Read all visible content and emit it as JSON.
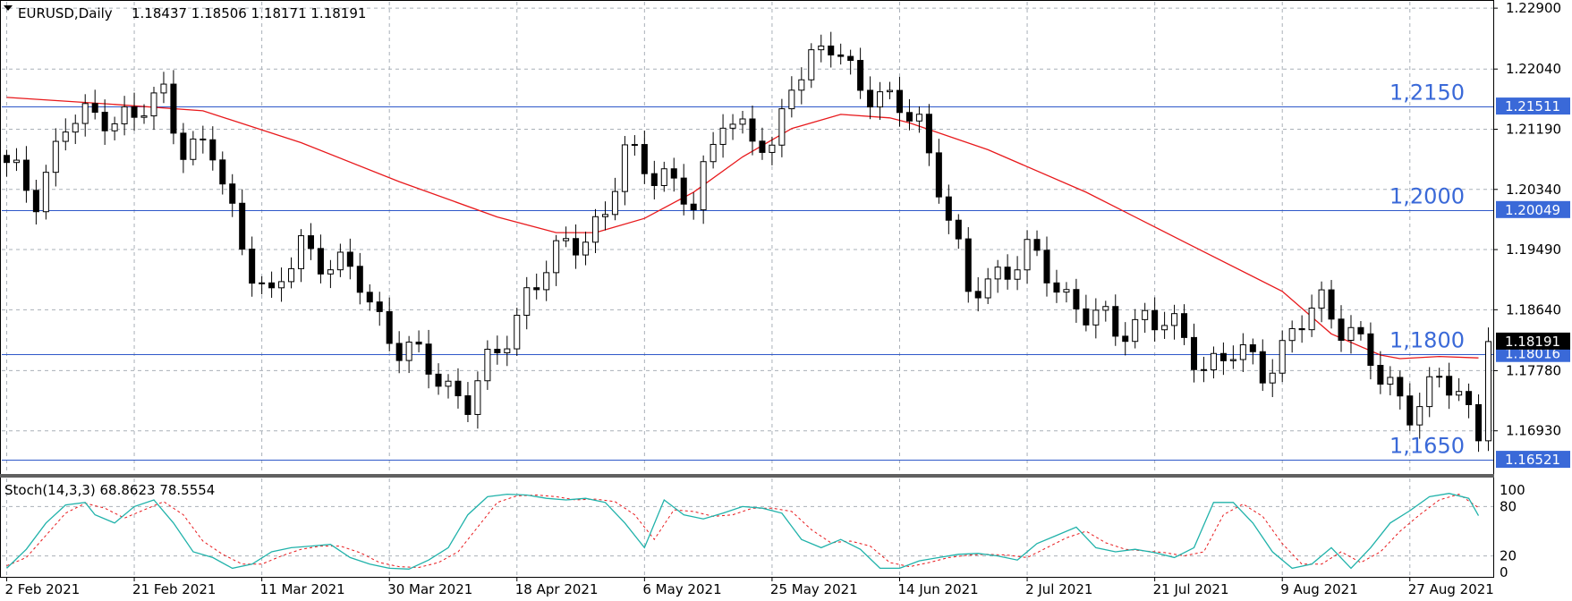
{
  "header": {
    "symbol": "EURUSD,Daily",
    "ohlc": "1.18437 1.18506 1.18171 1.18191"
  },
  "stoch_header": "Stoch(14,3,3) 68.8623 78.5554",
  "colors": {
    "grid": "#a9b0b8",
    "candle": "#000000",
    "ma": "#e8191c",
    "level_line": "#2e58c9",
    "level_text": "#3a69d8",
    "price_tag_blue": "#3a69d8",
    "price_tag_black": "#000000",
    "stoch_main": "#20b2aa",
    "stoch_signal": "#e8191c"
  },
  "chart_data": {
    "type": "candlestick",
    "symbol": "EURUSD",
    "timeframe": "Daily",
    "ylim": [
      1.1632,
      1.2299
    ],
    "y_ticks": [
      "1.22900",
      "1.22040",
      "1.21190",
      "1.20340",
      "1.19490",
      "1.18640",
      "1.17780",
      "1.16930"
    ],
    "y_tick_values": [
      1.229,
      1.2204,
      1.2119,
      1.2034,
      1.1949,
      1.1864,
      1.1778,
      1.1693
    ],
    "x_labels": [
      "2 Feb 2021",
      "21 Feb 2021",
      "11 Mar 2021",
      "30 Mar 2021",
      "18 Apr 2021",
      "6 May 2021",
      "25 May 2021",
      "14 Jun 2021",
      "2 Jul 2021",
      "21 Jul 2021",
      "9 Aug 2021",
      "27 Aug 2021"
    ],
    "x_label_candle_index": [
      0,
      13,
      26,
      39,
      52,
      65,
      78,
      91,
      104,
      117,
      130,
      143
    ],
    "levels": [
      {
        "label": "1,2150",
        "tag": "1.21511",
        "value": 1.21511
      },
      {
        "label": "1,2000",
        "tag": "1.20049",
        "value": 1.20049
      },
      {
        "label": "1,1800",
        "tag": "1.18016",
        "value": 1.18016
      },
      {
        "label": "1,1650",
        "tag": "1.16521",
        "value": 1.16521
      }
    ],
    "current_price": {
      "tag": "1.18191",
      "value": 1.18191
    },
    "grid": true,
    "candles": [],
    "moving_average": {
      "x": [
        0,
        10,
        20,
        30,
        40,
        50,
        56,
        60,
        65,
        70,
        75,
        80,
        85,
        90,
        92,
        100,
        110,
        120,
        130,
        135,
        140,
        142,
        146,
        150
      ],
      "y": [
        1.2164,
        1.2155,
        1.2145,
        1.21,
        1.2045,
        1.1995,
        1.1973,
        1.1973,
        1.1993,
        1.203,
        1.208,
        1.212,
        1.214,
        1.2135,
        1.2128,
        1.209,
        1.203,
        1.196,
        1.189,
        1.183,
        1.18,
        1.1795,
        1.1798,
        1.1796
      ]
    },
    "stochastic": {
      "label": "Stoch(14,3,3)",
      "main_last": 68.8623,
      "signal_last": 78.5554,
      "ylim": [
        0,
        100
      ],
      "y_ticks": [
        "100",
        "80",
        "20",
        "0"
      ],
      "y_tick_values": [
        100,
        80,
        20,
        0
      ],
      "main_x": [
        0,
        2,
        4,
        6,
        8,
        9,
        11,
        13,
        15,
        17,
        19,
        21,
        23,
        25,
        27,
        29,
        31,
        33,
        35,
        37,
        39,
        41,
        43,
        45,
        47,
        49,
        51,
        53,
        55,
        57,
        59,
        61,
        63,
        65,
        67,
        69,
        71,
        73,
        75,
        77,
        79,
        81,
        83,
        85,
        87,
        89,
        91,
        93,
        95,
        97,
        99,
        101,
        103,
        105,
        107,
        109,
        111,
        113,
        115,
        117,
        119,
        121,
        123,
        125,
        127,
        129,
        131,
        133,
        135,
        137,
        139,
        141,
        143,
        145,
        147,
        149,
        150
      ],
      "main_y": [
        5,
        28,
        60,
        82,
        85,
        70,
        60,
        80,
        88,
        60,
        25,
        18,
        5,
        10,
        25,
        30,
        32,
        34,
        18,
        10,
        5,
        4,
        15,
        30,
        70,
        92,
        95,
        94,
        90,
        88,
        90,
        85,
        60,
        30,
        88,
        70,
        65,
        72,
        80,
        78,
        72,
        40,
        30,
        40,
        28,
        5,
        5,
        14,
        18,
        22,
        23,
        20,
        15,
        35,
        45,
        55,
        30,
        25,
        28,
        24,
        18,
        30,
        85,
        85,
        60,
        25,
        5,
        10,
        30,
        5,
        30,
        60,
        75,
        92,
        96,
        90,
        68.8623
      ],
      "signal_x": [
        0,
        2,
        4,
        6,
        8,
        10,
        12,
        14,
        16,
        18,
        20,
        22,
        24,
        26,
        28,
        30,
        32,
        34,
        36,
        38,
        40,
        42,
        44,
        46,
        48,
        50,
        52,
        54,
        56,
        58,
        60,
        62,
        64,
        66,
        68,
        70,
        72,
        74,
        76,
        78,
        80,
        82,
        84,
        86,
        88,
        90,
        92,
        94,
        96,
        98,
        100,
        102,
        104,
        106,
        108,
        110,
        112,
        114,
        116,
        118,
        120,
        122,
        124,
        126,
        128,
        130,
        132,
        134,
        136,
        138,
        140,
        142,
        144,
        146,
        148,
        150
      ],
      "signal_y": [
        8,
        18,
        45,
        72,
        84,
        78,
        66,
        76,
        86,
        70,
        38,
        22,
        10,
        10,
        20,
        28,
        32,
        32,
        24,
        12,
        7,
        6,
        12,
        25,
        55,
        85,
        93,
        94,
        92,
        88,
        89,
        86,
        70,
        40,
        76,
        74,
        68,
        70,
        78,
        78,
        74,
        52,
        36,
        38,
        32,
        12,
        7,
        12,
        18,
        21,
        22,
        21,
        18,
        30,
        42,
        50,
        36,
        28,
        26,
        24,
        20,
        25,
        70,
        83,
        68,
        35,
        10,
        10,
        25,
        12,
        25,
        50,
        70,
        88,
        95,
        78.5554
      ]
    }
  }
}
